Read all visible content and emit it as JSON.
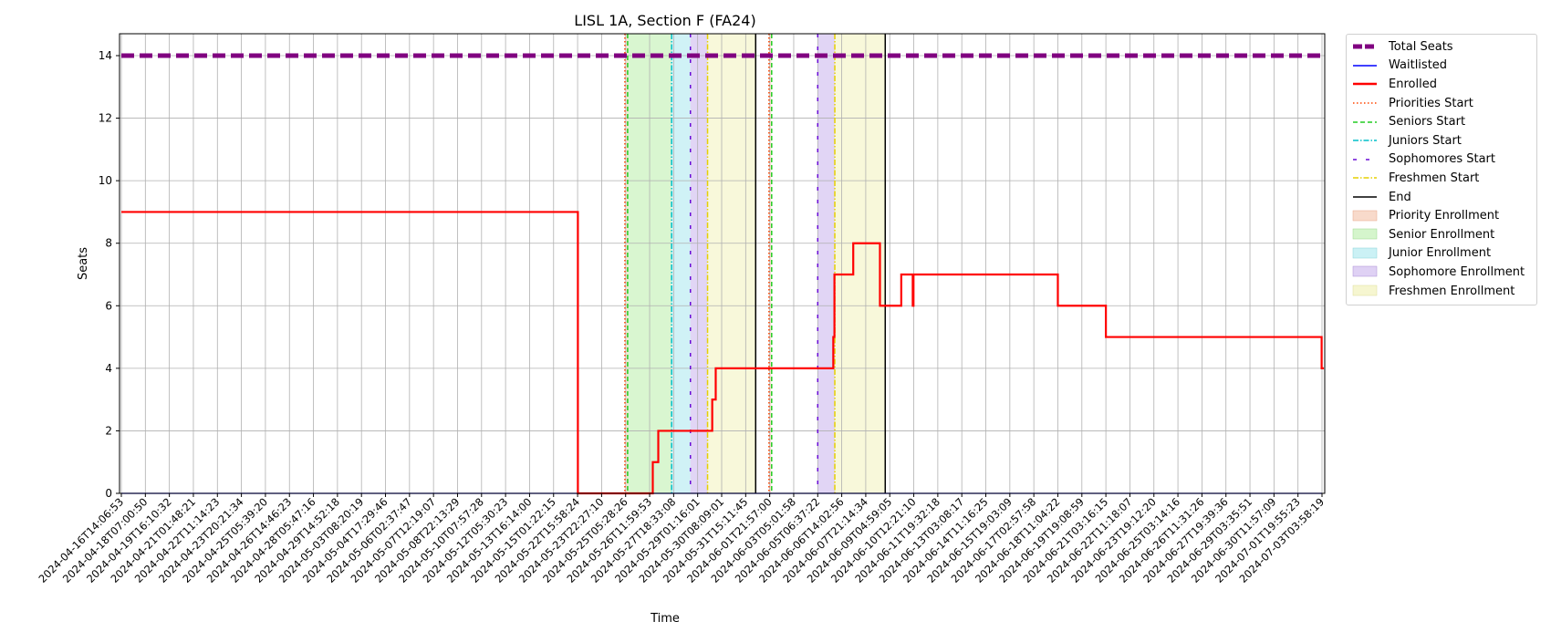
{
  "chart_data": {
    "type": "line",
    "title": "LISL 1A, Section F (FA24)",
    "xlabel": "Time",
    "ylabel": "Seats",
    "ylim": [
      0,
      14.7
    ],
    "yticks": [
      0,
      2,
      4,
      6,
      8,
      10,
      12,
      14
    ],
    "grid": true,
    "legend_position": "outside-right",
    "time_range": [
      "2024-04-16T14:06:53",
      "2024-07-03T03:58:19"
    ],
    "xtick_labels": [
      "2024-04-16T14:06:53",
      "2024-04-18T07:00:50",
      "2024-04-19T16:10:32",
      "2024-04-21T01:48:21",
      "2024-04-22T11:14:23",
      "2024-04-23T20:21:34",
      "2024-04-25T05:39:20",
      "2024-04-26T14:46:23",
      "2024-04-28T05:47:16",
      "2024-04-29T14:52:18",
      "2024-05-03T08:20:19",
      "2024-05-04T17:29:46",
      "2024-05-06T02:37:47",
      "2024-05-07T12:19:07",
      "2024-05-08T22:13:29",
      "2024-05-10T07:57:28",
      "2024-05-12T05:30:23",
      "2024-05-13T16:14:00",
      "2024-05-15T01:22:15",
      "2024-05-22T15:58:24",
      "2024-05-23T22:27:10",
      "2024-05-25T05:28:26",
      "2024-05-26T11:59:53",
      "2024-05-27T18:33:08",
      "2024-05-29T01:16:01",
      "2024-05-30T08:09:01",
      "2024-05-31T15:11:45",
      "2024-06-01T21:57:00",
      "2024-06-03T05:01:58",
      "2024-06-05T06:37:22",
      "2024-06-06T14:02:56",
      "2024-06-07T21:14:34",
      "2024-06-09T04:59:05",
      "2024-06-10T12:21:10",
      "2024-06-11T19:32:18",
      "2024-06-13T03:08:17",
      "2024-06-14T11:16:25",
      "2024-06-15T19:03:09",
      "2024-06-17T02:57:58",
      "2024-06-18T11:04:22",
      "2024-06-19T19:08:59",
      "2024-06-21T03:16:15",
      "2024-06-22T11:18:07",
      "2024-06-23T19:12:20",
      "2024-06-25T03:14:16",
      "2024-06-26T11:31:26",
      "2024-06-27T19:39:36",
      "2024-06-29T03:35:51",
      "2024-06-30T11:57:09",
      "2024-07-01T19:55:23",
      "2024-07-03T03:58:19"
    ],
    "total_seats": 14,
    "series": [
      {
        "name": "Total Seats",
        "color": "#800080",
        "style": "dashed-thick",
        "x": [
          "2024-04-16T14:06:53",
          "2024-07-03T03:58:19"
        ],
        "y": [
          14,
          14
        ]
      },
      {
        "name": "Waitlisted",
        "color": "#0000ff",
        "style": "solid",
        "x": [
          "2024-04-16T14:06:53",
          "2024-07-03T03:58:19"
        ],
        "y": [
          0,
          0
        ]
      },
      {
        "name": "Enrolled",
        "color": "#ff0000",
        "style": "step",
        "x": [
          "2024-04-16T14:06:53",
          "2024-05-22T15:58:24",
          "2024-05-22T16:20:00",
          "2024-05-26T11:59:53",
          "2024-05-26T16:00:00",
          "2024-05-26T23:00:00",
          "2024-05-29T10:00:00",
          "2024-05-29T20:00:00",
          "2024-05-30T00:30:00",
          "2024-06-05T12:30:00",
          "2024-06-06T03:00:00",
          "2024-06-06T04:30:00",
          "2024-06-07T05:00:00",
          "2024-06-07T16:00:00",
          "2024-06-08T16:00:00",
          "2024-06-09T20:00:00",
          "2024-06-10T11:00:00",
          "2024-06-10T12:00:00",
          "2024-06-10T14:00:00",
          "2024-06-18T11:04:22",
          "2024-06-21T03:16:15",
          "2024-07-03T03:30:00"
        ],
        "y": [
          9,
          9,
          0,
          0,
          1,
          2,
          2,
          3,
          4,
          4,
          5,
          7,
          8,
          8,
          6,
          7,
          6,
          7,
          7,
          6,
          5,
          4
        ]
      }
    ],
    "shaded_regions": [
      {
        "name": "Priority Enrollment",
        "color": "#f4c2a8",
        "periods": [
          [
            "2024-05-25T05:28:26",
            "2024-05-25T08:00:00"
          ],
          [
            "2024-06-01T21:57:00",
            "2024-06-02T00:00:00"
          ]
        ]
      },
      {
        "name": "Senior Enrollment",
        "color": "#b9eeaa",
        "periods": [
          [
            "2024-05-25T08:00:00",
            "2024-05-27T16:00:00"
          ]
        ]
      },
      {
        "name": "Junior Enrollment",
        "color": "#a9e8ee",
        "periods": [
          [
            "2024-05-27T16:00:00",
            "2024-05-28T16:00:00"
          ]
        ]
      },
      {
        "name": "Sophomore Enrollment",
        "color": "#c9b2ec",
        "periods": [
          [
            "2024-05-28T16:00:00",
            "2024-05-29T14:00:00"
          ],
          [
            "2024-06-05T06:37:22",
            "2024-06-06T05:00:00"
          ]
        ]
      },
      {
        "name": "Freshmen Enrollment",
        "color": "#f2f2bc",
        "periods": [
          [
            "2024-05-29T14:00:00",
            "2024-06-01T04:00:00"
          ],
          [
            "2024-06-06T05:00:00",
            "2024-06-08T23:00:00"
          ]
        ]
      }
    ],
    "vertical_lines": [
      {
        "name": "Priorities Start",
        "color": "#ff4500",
        "style": "dotted",
        "x": [
          "2024-05-25T04:30:00",
          "2024-06-01T21:00:00"
        ]
      },
      {
        "name": "Seniors Start",
        "color": "#22cc22",
        "style": "dashed",
        "x": [
          "2024-05-25T08:00:00",
          "2024-06-02T00:30:00"
        ]
      },
      {
        "name": "Juniors Start",
        "color": "#00bfc8",
        "style": "dashdot",
        "x": [
          "2024-05-27T16:00:00"
        ]
      },
      {
        "name": "Sophomores Start",
        "color": "#6a0dd6",
        "style": "loosedash",
        "x": [
          "2024-05-28T16:00:00",
          "2024-06-05T06:37:22"
        ]
      },
      {
        "name": "Freshmen Start",
        "color": "#e6d000",
        "style": "dashdot",
        "x": [
          "2024-05-29T14:00:00",
          "2024-06-06T05:00:00"
        ]
      },
      {
        "name": "End",
        "color": "#000000",
        "style": "solid",
        "x": [
          "2024-06-01T04:00:00",
          "2024-06-08T23:00:00"
        ]
      }
    ]
  }
}
